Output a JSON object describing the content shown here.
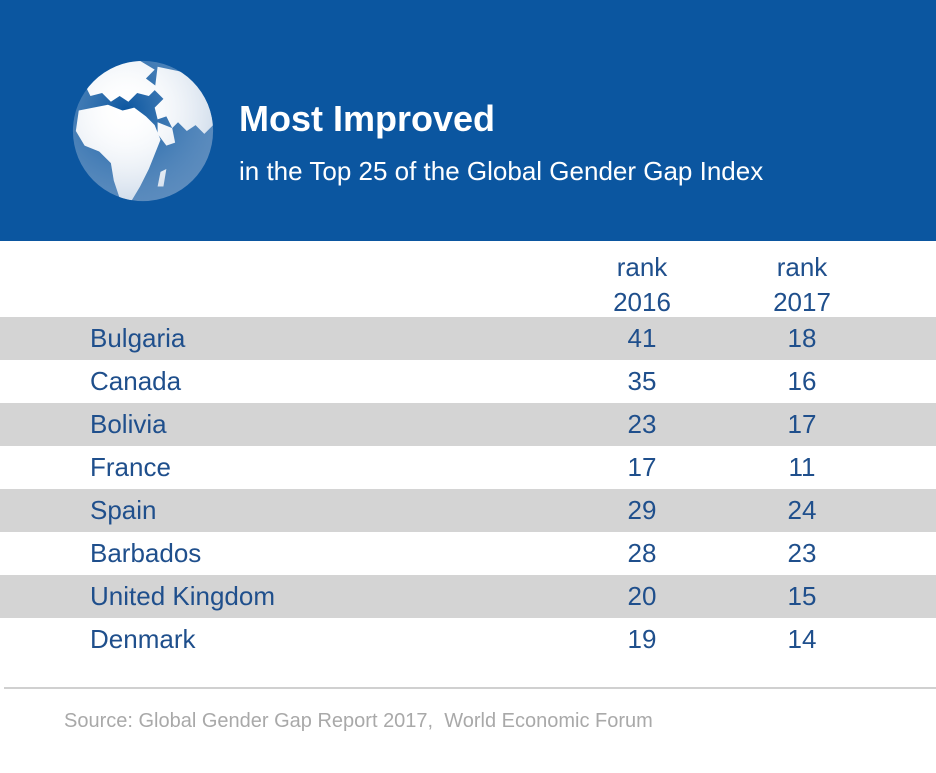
{
  "header": {
    "title": "Most Improved",
    "subtitle": "in the Top 25 of the Global Gender Gap Index",
    "background_color": "#0b56a0",
    "icon": "globe-icon"
  },
  "chart_data": {
    "type": "table",
    "title": "Most Improved",
    "subtitle": "in the Top 25 of the Global Gender Gap Index",
    "columns": [
      {
        "line1": "rank",
        "line2": "2016"
      },
      {
        "line1": "rank",
        "line2": "2017"
      }
    ],
    "rows": [
      {
        "country": "Bulgaria",
        "rank2016": "41",
        "rank2017": "18"
      },
      {
        "country": "Canada",
        "rank2016": "35",
        "rank2017": "16"
      },
      {
        "country": "Bolivia",
        "rank2016": "23",
        "rank2017": "17"
      },
      {
        "country": "France",
        "rank2016": "17",
        "rank2017": "11"
      },
      {
        "country": "Spain",
        "rank2016": "29",
        "rank2017": "24"
      },
      {
        "country": "Barbados",
        "rank2016": "28",
        "rank2017": "23"
      },
      {
        "country": "United Kingdom",
        "rank2016": "20",
        "rank2017": "15"
      },
      {
        "country": "Denmark",
        "rank2016": "19",
        "rank2017": "14"
      }
    ],
    "text_color": "#1f4f8c",
    "shaded_row_color": "#d4d4d4"
  },
  "footer": {
    "source": "Source: Global Gender Gap Report 2017,  World Economic Forum"
  }
}
